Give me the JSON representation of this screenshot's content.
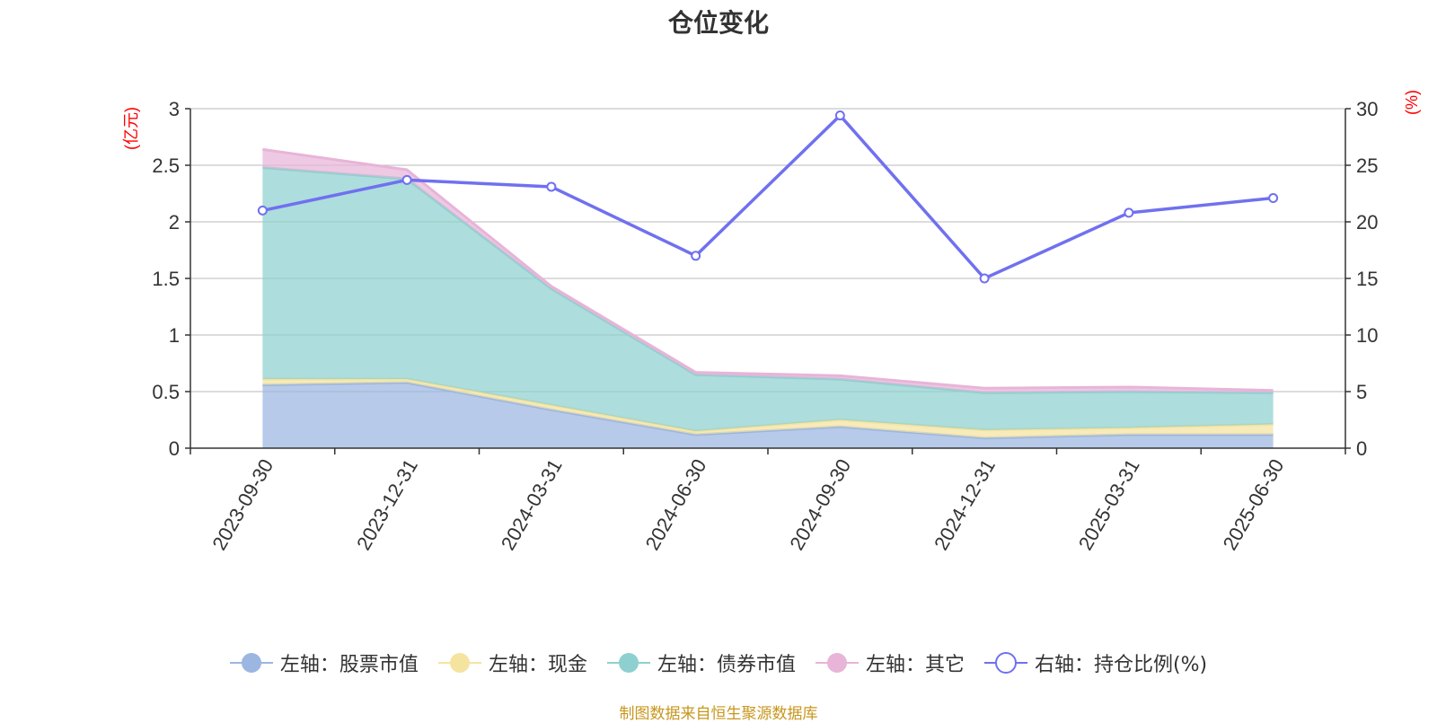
{
  "chart_data": {
    "type": "area",
    "title": "仓位变化",
    "ylabel_left": "(亿元)",
    "ylabel_right": "(%)",
    "categories": [
      "2023-09-30",
      "2023-12-31",
      "2024-03-31",
      "2024-06-30",
      "2024-09-30",
      "2024-12-31",
      "2025-03-31",
      "2025-06-30"
    ],
    "ylim_left": [
      0,
      3
    ],
    "ylim_right": [
      0,
      30
    ],
    "yticks_left": [
      "0",
      "0.5",
      "1",
      "1.5",
      "2",
      "2.5",
      "3"
    ],
    "yticks_right": [
      "0",
      "5",
      "10",
      "15",
      "20",
      "25",
      "30"
    ],
    "grid": true,
    "stacked": true,
    "series": [
      {
        "name": "左轴：股票市值",
        "axis": "left",
        "type": "area",
        "color": "#9bb6e0",
        "values": [
          0.56,
          0.58,
          0.34,
          0.12,
          0.19,
          0.09,
          0.12,
          0.12
        ]
      },
      {
        "name": "左轴：现金",
        "axis": "left",
        "type": "area",
        "color": "#f5e3a0",
        "values": [
          0.05,
          0.03,
          0.04,
          0.03,
          0.06,
          0.07,
          0.06,
          0.09
        ]
      },
      {
        "name": "左轴：债券市值",
        "axis": "left",
        "type": "area",
        "color": "#8ed0cf",
        "values": [
          1.87,
          1.77,
          1.03,
          0.5,
          0.36,
          0.33,
          0.32,
          0.28
        ]
      },
      {
        "name": "左轴：其它",
        "axis": "left",
        "type": "area",
        "color": "#e8b4d8",
        "values": [
          0.16,
          0.08,
          0.02,
          0.02,
          0.03,
          0.04,
          0.04,
          0.02
        ]
      },
      {
        "name": "右轴：持仓比例(%)",
        "axis": "right",
        "type": "line",
        "color": "#7070f0",
        "values": [
          21.0,
          23.7,
          23.1,
          17.0,
          29.4,
          15.0,
          20.8,
          22.1
        ]
      }
    ],
    "legend_position": "bottom",
    "source_note": "制图数据来自恒生聚源数据库"
  }
}
